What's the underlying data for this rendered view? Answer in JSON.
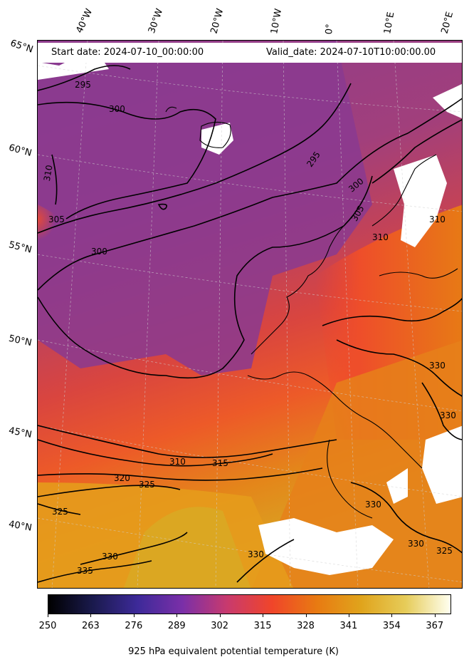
{
  "header": {
    "start_date": "Start date: 2024-07-10_00:00:00",
    "valid_date": "Valid_date: 2024-07-10T10:00:00.00"
  },
  "longitude_labels": [
    "40°W",
    "30°W",
    "20°W",
    "10°W",
    "0°",
    "10°E",
    "20°E"
  ],
  "latitude_labels": [
    "65°N",
    "60°N",
    "55°N",
    "50°N",
    "45°N",
    "40°N"
  ],
  "contour_labels": [
    "295",
    "300",
    "305",
    "310",
    "315",
    "320",
    "325",
    "330",
    "335"
  ],
  "colorbar": {
    "ticks": [
      "250",
      "263",
      "276",
      "289",
      "302",
      "315",
      "328",
      "341",
      "354",
      "367"
    ],
    "label": "925 hPa equivalent potential temperature (K)",
    "range": [
      250,
      372
    ],
    "colormap": "CMRmap",
    "colors": [
      "#000000",
      "#1a1a4d",
      "#3d2a99",
      "#7a2fa8",
      "#c83a6e",
      "#f0452a",
      "#e87a12",
      "#e0a41c",
      "#e6cc5a",
      "#fffff0"
    ]
  },
  "field_colors": {
    "cool_purple": "#8a3a8f",
    "mid_red": "#e24a3b",
    "warm_orange": "#e6871b",
    "hot_yellow": "#d9a320",
    "missing": "#ffffff"
  }
}
